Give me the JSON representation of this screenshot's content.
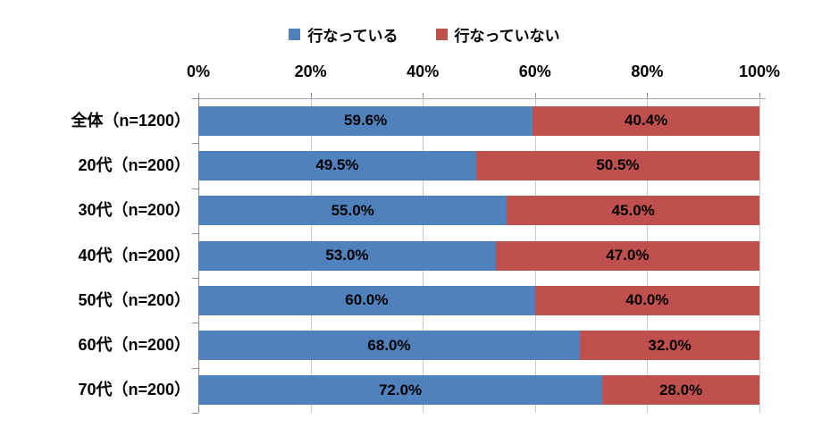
{
  "chart_data": {
    "type": "bar",
    "orientation": "horizontal",
    "stacked": true,
    "title": "",
    "categories": [
      "全体（n=1200）",
      "20代（n=200）",
      "30代（n=200）",
      "40代（n=200）",
      "50代（n=200）",
      "60代（n=200）",
      "70代（n=200）"
    ],
    "series": [
      {
        "name": "行なっている",
        "color": "#4F81BD",
        "values": [
          59.6,
          49.5,
          55.0,
          53.0,
          60.0,
          68.0,
          72.0
        ],
        "labels": [
          "59.6%",
          "49.5%",
          "55.0%",
          "53.0%",
          "60.0%",
          "68.0%",
          "72.0%"
        ]
      },
      {
        "name": "行なっていない",
        "color": "#C0504D",
        "values": [
          40.4,
          50.5,
          45.0,
          47.0,
          40.0,
          32.0,
          28.0
        ],
        "labels": [
          "40.4%",
          "50.5%",
          "45.0%",
          "47.0%",
          "40.0%",
          "32.0%",
          "28.0%"
        ]
      }
    ],
    "x_axis": {
      "position": "top",
      "min": 0,
      "max": 100,
      "tick_step": 20,
      "tick_labels": [
        "0%",
        "20%",
        "40%",
        "60%",
        "80%",
        "100%"
      ]
    },
    "legend_position": "top",
    "grid": true,
    "data_label_position": "center",
    "styles": {
      "grid_color": "#C9C9C9",
      "axis_color": "#8C8C8C",
      "label_color": "#000000",
      "background": "#FFFFFF"
    }
  }
}
